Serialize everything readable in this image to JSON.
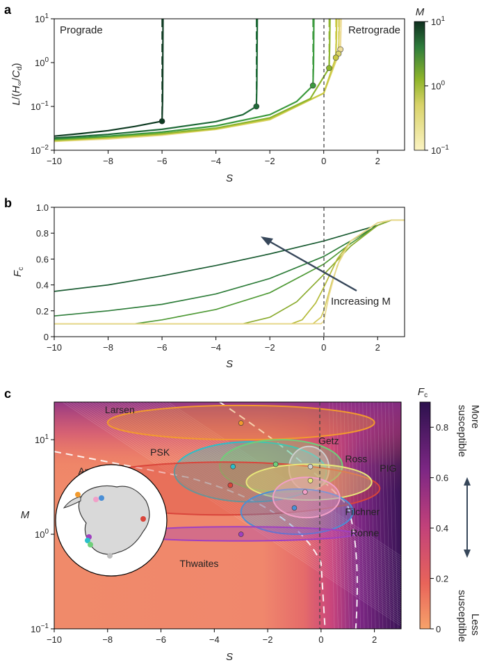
{
  "chart_data": [
    {
      "panel": "a",
      "type": "line",
      "xlabel": "S",
      "ylabel": "L/(H∞/Cd)",
      "xlim": [
        -10,
        3
      ],
      "ylim": [
        0.01,
        10
      ],
      "yscale": "log",
      "xticks": [
        "−10",
        "−8",
        "−6",
        "−4",
        "−2",
        "0",
        "2"
      ],
      "yticks": [
        "10−2",
        "10−1",
        "100",
        "101"
      ],
      "annotations": [
        "Prograde",
        "Retrograde"
      ],
      "vline_x": 0,
      "colorbar": {
        "label": "M",
        "scale": "log",
        "ticks": [
          "10−1",
          "100",
          "101"
        ],
        "range": [
          0.1,
          10
        ]
      },
      "series": [
        {
          "M": 10,
          "color": "#0e3b22",
          "x": [
            -10,
            -9,
            -8,
            -7,
            -6
          ],
          "y": [
            0.021,
            0.024,
            0.028,
            0.035,
            0.046
          ],
          "critical": {
            "S": -6,
            "L": 0.046
          }
        },
        {
          "M": 5,
          "color": "#1f6a38",
          "x": [
            -10,
            -8,
            -6,
            -4,
            -3,
            -2.5
          ],
          "y": [
            0.019,
            0.023,
            0.03,
            0.045,
            0.065,
            0.1
          ],
          "critical": {
            "S": -2.5,
            "L": 0.1
          }
        },
        {
          "M": 2,
          "color": "#3c9a3e",
          "x": [
            -10,
            -8,
            -6,
            -4,
            -2,
            -1,
            -0.4
          ],
          "y": [
            0.018,
            0.021,
            0.026,
            0.036,
            0.065,
            0.13,
            0.3
          ],
          "critical": {
            "S": -0.4,
            "L": 0.3
          }
        },
        {
          "M": 1,
          "color": "#8cb52e",
          "x": [
            -10,
            -8,
            -6,
            -4,
            -2,
            -0.5,
            0.2
          ],
          "y": [
            0.017,
            0.02,
            0.024,
            0.032,
            0.055,
            0.15,
            0.75
          ],
          "critical": {
            "S": 0.2,
            "L": 0.75
          }
        },
        {
          "M": 0.5,
          "color": "#c8c842",
          "x": [
            -10,
            -8,
            -6,
            -4,
            -2,
            0,
            0.45
          ],
          "y": [
            0.017,
            0.019,
            0.023,
            0.031,
            0.052,
            0.2,
            1.3
          ],
          "critical": {
            "S": 0.45,
            "L": 1.3
          }
        },
        {
          "M": 0.3,
          "color": "#dcd66a",
          "x": [
            -10,
            -8,
            -6,
            -4,
            -2,
            0,
            0.55
          ],
          "y": [
            0.016,
            0.019,
            0.023,
            0.03,
            0.05,
            0.2,
            1.6
          ],
          "critical": {
            "S": 0.55,
            "L": 1.6
          }
        },
        {
          "M": 0.1,
          "color": "#eedd9a",
          "x": [
            -10,
            -8,
            -6,
            -4,
            -2,
            0,
            0.62
          ],
          "y": [
            0.016,
            0.018,
            0.022,
            0.03,
            0.05,
            0.2,
            2.0
          ],
          "critical": {
            "S": 0.62,
            "L": 2.0
          }
        }
      ]
    },
    {
      "panel": "b",
      "type": "line",
      "xlabel": "S",
      "ylabel": "Fc",
      "xlim": [
        -10,
        3
      ],
      "ylim": [
        0,
        1
      ],
      "xticks": [
        "−10",
        "−8",
        "−6",
        "−4",
        "−2",
        "0",
        "2"
      ],
      "yticks": [
        "0",
        "0.2",
        "0.4",
        "0.6",
        "0.8",
        "1.0"
      ],
      "vline_x": 0,
      "annotation": "Increasing M",
      "series": [
        {
          "M": 10,
          "color": "#1a5c32",
          "x": [
            -10,
            -8,
            -6,
            -4,
            -2,
            0,
            1,
            2,
            2.5,
            3
          ],
          "y": [
            0.35,
            0.4,
            0.47,
            0.55,
            0.64,
            0.74,
            0.8,
            0.86,
            0.9,
            0.9
          ]
        },
        {
          "M": 5,
          "color": "#2e7d3a",
          "x": [
            -10,
            -8,
            -6,
            -4,
            -2,
            0,
            1,
            2,
            2.5,
            3
          ],
          "y": [
            0.16,
            0.2,
            0.25,
            0.33,
            0.45,
            0.62,
            0.74,
            0.86,
            0.9,
            0.9
          ]
        },
        {
          "M": 2,
          "color": "#4f9a36",
          "x": [
            -10,
            -8,
            -7,
            -6,
            -4,
            -2,
            0,
            1,
            2,
            2.5,
            3
          ],
          "y": [
            0.1,
            0.1,
            0.1,
            0.13,
            0.21,
            0.34,
            0.56,
            0.72,
            0.86,
            0.9,
            0.9
          ]
        },
        {
          "M": 1,
          "color": "#8aab2e",
          "x": [
            -10,
            -4,
            -3,
            -2,
            -1,
            0,
            1,
            2,
            2.5,
            3
          ],
          "y": [
            0.1,
            0.1,
            0.1,
            0.15,
            0.27,
            0.48,
            0.7,
            0.86,
            0.9,
            0.9
          ]
        },
        {
          "M": 0.5,
          "color": "#b4ba38",
          "x": [
            -10,
            -1.2,
            -0.8,
            -0.3,
            0,
            0.5,
            1,
            2,
            2.5,
            3
          ],
          "y": [
            0.1,
            0.1,
            0.13,
            0.26,
            0.38,
            0.6,
            0.74,
            0.88,
            0.9,
            0.9
          ]
        },
        {
          "M": 0.3,
          "color": "#d2c95a",
          "x": [
            -10,
            -0.4,
            -0.1,
            0,
            0.3,
            0.6,
            1,
            2,
            2.5,
            3
          ],
          "y": [
            0.1,
            0.1,
            0.15,
            0.2,
            0.42,
            0.6,
            0.74,
            0.88,
            0.9,
            0.9
          ]
        },
        {
          "M": 0.1,
          "color": "#e8d88c",
          "x": [
            -10,
            -0.1,
            0,
            0.2,
            0.5,
            1,
            2,
            2.5,
            3
          ],
          "y": [
            0.1,
            0.1,
            0.12,
            0.32,
            0.55,
            0.74,
            0.88,
            0.9,
            0.9
          ]
        }
      ]
    },
    {
      "panel": "c",
      "type": "heatmap",
      "xlabel": "S",
      "ylabel": "M",
      "xlim": [
        -10,
        3
      ],
      "ylim": [
        0.1,
        25
      ],
      "yscale": "log",
      "xticks": [
        "−10",
        "−8",
        "−6",
        "−4",
        "−2",
        "0",
        "2"
      ],
      "yticks": [
        "10−1",
        "100",
        "101"
      ],
      "colorbar": {
        "label": "Fc",
        "ticks": [
          "0",
          "0.2",
          "0.4",
          "0.6",
          "0.8"
        ],
        "range": [
          0,
          0.9
        ],
        "top_label": [
          "More",
          "susceptible"
        ],
        "bottom_label": [
          "Less",
          "susceptible"
        ]
      },
      "ice_shelves": [
        {
          "name": "Larsen",
          "S": -3.0,
          "M": 15,
          "color": "#f29a2e",
          "S_range": [
            -8.0,
            2.0
          ],
          "M_range": [
            10,
            23
          ]
        },
        {
          "name": "PSK",
          "S": -3.3,
          "M": 5.2,
          "color": "#2bbfc9",
          "S_range": [
            -5.5,
            0.2
          ],
          "M_range": [
            2.2,
            9.5
          ]
        },
        {
          "name": "Getz",
          "S": -1.7,
          "M": 5.5,
          "color": "#6fcf7a",
          "S_range": [
            -3.8,
            0.8
          ],
          "M_range": [
            2.8,
            10
          ]
        },
        {
          "name": "Ross",
          "S": -0.4,
          "M": 5.2,
          "color": "#cfcfcf",
          "S_range": [
            -1.2,
            0.3
          ],
          "M_range": [
            2.9,
            8.5
          ]
        },
        {
          "name": "Amery",
          "S": -3.4,
          "M": 3.3,
          "color": "#d9453b",
          "S_range": [
            -9.5,
            2.2
          ],
          "M_range": [
            1.6,
            5.8
          ]
        },
        {
          "name": "PIG",
          "S": -0.4,
          "M": 3.7,
          "color": "#e8e87a",
          "S_range": [
            -2.8,
            1.9
          ],
          "M_range": [
            2.3,
            5.5
          ]
        },
        {
          "name": "Filchner",
          "S": -1.0,
          "M": 1.9,
          "color": "#4a8fd6",
          "S_range": [
            -3.0,
            1.2
          ],
          "M_range": [
            1.0,
            3.0
          ]
        },
        {
          "name": "Ronne",
          "S": -0.6,
          "M": 2.8,
          "color": "#f2a0c8",
          "S_range": [
            -1.8,
            0.7
          ],
          "M_range": [
            1.5,
            4.0
          ]
        },
        {
          "name": "Thwaites",
          "S": -3.0,
          "M": 1.0,
          "color": "#a040c0",
          "S_range": [
            -7.5,
            1.3
          ],
          "M_range": [
            0.85,
            1.2
          ]
        }
      ]
    }
  ]
}
